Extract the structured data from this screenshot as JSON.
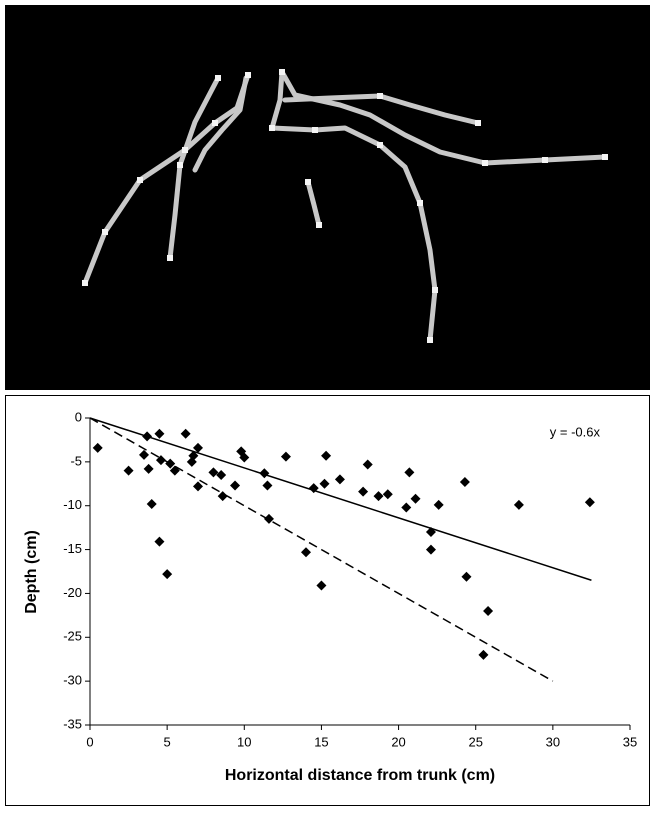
{
  "chart_data": {
    "type": "scatter",
    "xlabel": "Horizontal distance from trunk (cm)",
    "ylabel": "Depth (cm)",
    "annotation": "y = -0.6x",
    "xlim": [
      0,
      35
    ],
    "xticks": [
      0,
      5,
      10,
      15,
      20,
      25,
      30,
      35
    ],
    "ylim": [
      -35,
      0
    ],
    "yticks": [
      0,
      -5,
      -10,
      -15,
      -20,
      -25,
      -30,
      -35
    ],
    "color": "#000000",
    "x": [
      0.5,
      2.5,
      3.5,
      3.7,
      3.8,
      4,
      4.5,
      4.5,
      4.6,
      5,
      5.2,
      5.5,
      6.2,
      6.6,
      6.7,
      7,
      7,
      8,
      8.5,
      8.6,
      9.4,
      9.8,
      10,
      11.3,
      11.5,
      11.6,
      12.7,
      14,
      14.5,
      15,
      15.2,
      15.3,
      16.2,
      17.7,
      18,
      18.7,
      19.3,
      20.5,
      20.7,
      21.1,
      22.1,
      22.1,
      22.6,
      24.3,
      24.4,
      25.5,
      25.8,
      27.8,
      32.4
    ],
    "values": [
      -3.4,
      -6,
      -4.2,
      -2.1,
      -5.8,
      -9.8,
      -1.8,
      -14.1,
      -4.8,
      -17.8,
      -5.2,
      -6,
      -1.8,
      -5,
      -4.3,
      -3.4,
      -7.8,
      -6.2,
      -6.5,
      -8.9,
      -7.7,
      -3.8,
      -4.5,
      -6.3,
      -7.7,
      -11.5,
      -4.4,
      -15.3,
      -8,
      -19.1,
      -7.5,
      -4.3,
      -7,
      -8.4,
      -5.3,
      -8.9,
      -8.7,
      -10.2,
      -6.2,
      -9.2,
      -13,
      -15,
      -9.9,
      -7.3,
      -18.1,
      -27,
      -22,
      -9.9,
      -9.6
    ],
    "lines": [
      {
        "style": "solid",
        "x": [
          0,
          32.5
        ],
        "y": [
          0,
          -18.5
        ]
      },
      {
        "style": "dashed",
        "x": [
          0,
          30
        ],
        "y": [
          0,
          -30
        ]
      }
    ]
  }
}
